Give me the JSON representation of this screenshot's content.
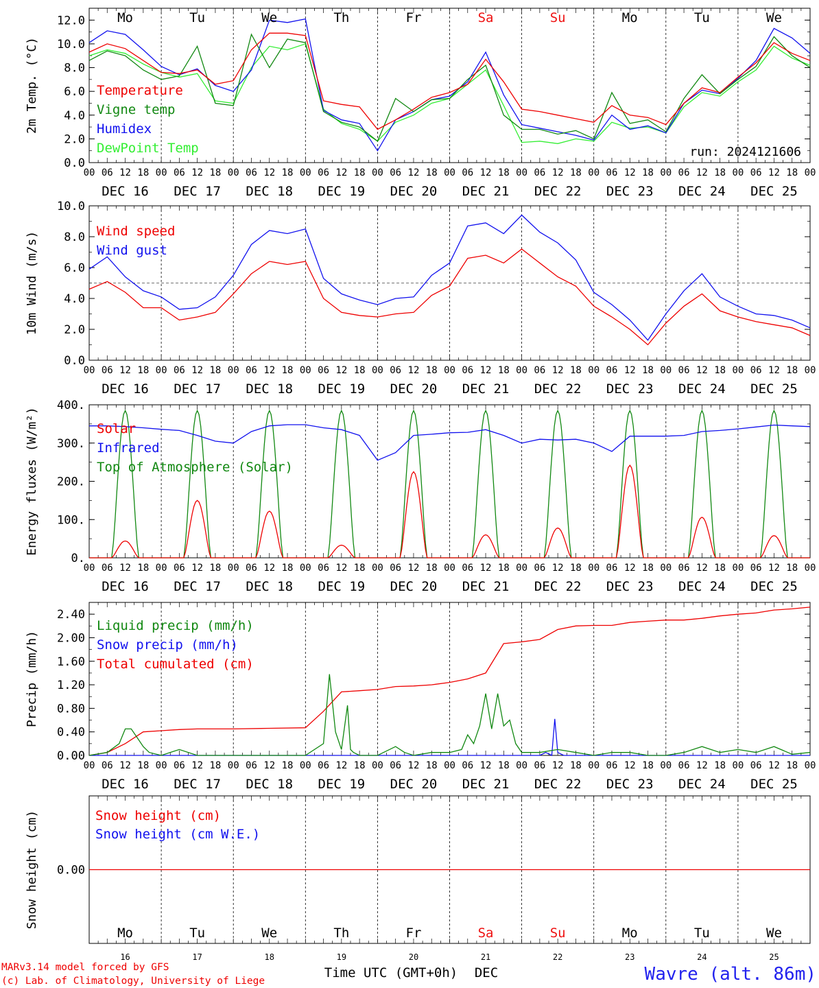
{
  "meta": {
    "run_label": "run: 2024121606",
    "credit_line1": "MARv3.14 model forced by GFS",
    "credit_line2": "(c) Lab. of Climatology, University of Liege",
    "location": "Wavre (alt. 86m)",
    "xaxis_title": "Time UTC (GMT+0h)",
    "xaxis_month": "DEC"
  },
  "time_axis": {
    "hour_ticks": [
      "00",
      "06",
      "12",
      "18"
    ],
    "end_tick": "00",
    "days": [
      {
        "weekday": "Mo",
        "date": "DEC 16",
        "daynum": "16",
        "weekend": false
      },
      {
        "weekday": "Tu",
        "date": "DEC 17",
        "daynum": "17",
        "weekend": false
      },
      {
        "weekday": "We",
        "date": "DEC 18",
        "daynum": "18",
        "weekend": false
      },
      {
        "weekday": "Th",
        "date": "DEC 19",
        "daynum": "19",
        "weekend": false
      },
      {
        "weekday": "Fr",
        "date": "DEC 20",
        "daynum": "20",
        "weekend": false
      },
      {
        "weekday": "Sa",
        "date": "DEC 21",
        "daynum": "21",
        "weekend": true
      },
      {
        "weekday": "Su",
        "date": "DEC 22",
        "daynum": "22",
        "weekend": true
      },
      {
        "weekday": "Mo",
        "date": "DEC 23",
        "daynum": "23",
        "weekend": false
      },
      {
        "weekday": "Tu",
        "date": "DEC 24",
        "daynum": "24",
        "weekend": false
      },
      {
        "weekday": "We",
        "date": "DEC 25",
        "daynum": "25",
        "weekend": false
      }
    ]
  },
  "colors": {
    "red": "#ee0000",
    "green": "#118811",
    "blue": "#1111ee",
    "lightgreen": "#33ee33",
    "weekend": "#ee1111",
    "location": "#2222ee"
  },
  "chart_data": [
    {
      "type": "line",
      "ylabel": "2m Temp. (°C)",
      "ylim": [
        0,
        13
      ],
      "yticks": [
        "0.0",
        "2.0",
        "4.0",
        "6.0",
        "8.0",
        "10.0",
        "12.0"
      ],
      "yticks_values": [
        0,
        2,
        4,
        6,
        8,
        10,
        12
      ],
      "x_unit": "hours since DEC 16 00 UTC",
      "series": [
        {
          "name": "Temperature",
          "color": "#ee0000",
          "x": [
            0,
            6,
            12,
            18,
            24,
            30,
            36,
            42,
            48,
            54,
            60,
            66,
            72,
            78,
            84,
            90,
            96,
            102,
            108,
            114,
            120,
            126,
            132,
            138,
            144,
            150,
            156,
            162,
            168,
            174,
            180,
            186,
            192,
            198,
            204,
            210,
            216,
            222,
            228,
            234,
            240
          ],
          "y": [
            9.3,
            10.0,
            9.6,
            8.6,
            7.6,
            7.5,
            7.8,
            6.6,
            6.9,
            9.5,
            10.9,
            10.9,
            10.7,
            5.2,
            4.9,
            4.7,
            2.8,
            3.6,
            4.5,
            5.5,
            5.9,
            6.6,
            8.7,
            6.8,
            4.5,
            4.3,
            4.0,
            3.7,
            3.4,
            4.8,
            4.0,
            3.8,
            3.2,
            5.0,
            6.3,
            5.9,
            7.2,
            8.4,
            10.1,
            9.2,
            8.6
          ]
        },
        {
          "name": "Vigne temp",
          "color": "#118811",
          "x": [
            0,
            6,
            12,
            18,
            24,
            30,
            36,
            42,
            48,
            54,
            60,
            66,
            72,
            78,
            84,
            90,
            96,
            102,
            108,
            114,
            120,
            126,
            132,
            138,
            144,
            150,
            156,
            162,
            168,
            174,
            180,
            186,
            192,
            198,
            204,
            210,
            216,
            222,
            228,
            234,
            240
          ],
          "y": [
            8.6,
            9.4,
            9.0,
            7.8,
            7.0,
            7.3,
            9.8,
            5.0,
            4.8,
            10.8,
            8.0,
            10.4,
            10.1,
            4.3,
            3.4,
            3.0,
            1.8,
            5.4,
            4.3,
            5.3,
            5.4,
            7.0,
            8.2,
            4.0,
            2.8,
            2.8,
            2.4,
            2.7,
            2.0,
            5.9,
            3.3,
            3.6,
            2.6,
            5.4,
            7.4,
            5.8,
            7.0,
            8.1,
            10.6,
            9.0,
            8.0
          ]
        },
        {
          "name": "Humidex",
          "color": "#1111ee",
          "x": [
            0,
            6,
            12,
            18,
            24,
            30,
            36,
            42,
            48,
            54,
            60,
            66,
            72,
            78,
            84,
            90,
            96,
            102,
            108,
            114,
            120,
            126,
            132,
            138,
            144,
            150,
            156,
            162,
            168,
            174,
            180,
            186,
            192,
            198,
            204,
            210,
            216,
            222,
            228,
            234,
            240
          ],
          "y": [
            10.1,
            11.1,
            10.8,
            9.5,
            8.1,
            7.4,
            7.9,
            6.5,
            6.0,
            7.8,
            12.0,
            11.8,
            12.1,
            4.4,
            3.6,
            3.3,
            1.0,
            3.6,
            4.3,
            5.3,
            5.6,
            6.8,
            9.3,
            5.7,
            3.2,
            2.9,
            2.6,
            2.3,
            1.9,
            4.0,
            2.8,
            3.1,
            2.5,
            5.0,
            6.1,
            5.8,
            7.1,
            8.6,
            11.3,
            10.5,
            9.2
          ]
        },
        {
          "name": "DewPoint Temp",
          "color": "#33ee33",
          "x": [
            0,
            6,
            12,
            18,
            24,
            30,
            36,
            42,
            48,
            54,
            60,
            66,
            72,
            78,
            84,
            90,
            96,
            102,
            108,
            114,
            120,
            126,
            132,
            138,
            144,
            150,
            156,
            162,
            168,
            174,
            180,
            186,
            192,
            198,
            204,
            210,
            216,
            222,
            228,
            234,
            240
          ],
          "y": [
            9.0,
            9.5,
            9.2,
            8.3,
            7.6,
            7.2,
            7.5,
            5.2,
            5.0,
            8.0,
            9.8,
            9.5,
            10.0,
            4.5,
            3.3,
            2.8,
            1.8,
            3.4,
            4.0,
            5.0,
            5.4,
            6.6,
            7.8,
            4.8,
            1.7,
            1.8,
            1.6,
            2.0,
            1.8,
            3.4,
            2.9,
            3.0,
            2.5,
            4.7,
            5.9,
            5.6,
            6.8,
            7.8,
            9.8,
            8.8,
            8.2
          ]
        }
      ]
    },
    {
      "type": "line",
      "ylabel": "10m Wind (m/s)",
      "ylim": [
        0,
        10
      ],
      "yticks": [
        "0.0",
        "2.0",
        "4.0",
        "6.0",
        "8.0",
        "10.0"
      ],
      "yticks_values": [
        0,
        2,
        4,
        6,
        8,
        10
      ],
      "reference_line": 5,
      "x_unit": "hours since DEC 16 00 UTC",
      "series": [
        {
          "name": "Wind speed",
          "color": "#ee0000",
          "x": [
            0,
            6,
            12,
            18,
            24,
            30,
            36,
            42,
            48,
            54,
            60,
            66,
            72,
            78,
            84,
            90,
            96,
            102,
            108,
            114,
            120,
            126,
            132,
            138,
            144,
            150,
            156,
            162,
            168,
            174,
            180,
            186,
            192,
            198,
            204,
            210,
            216,
            222,
            228,
            234,
            240
          ],
          "y": [
            4.6,
            5.1,
            4.4,
            3.4,
            3.4,
            2.6,
            2.8,
            3.1,
            4.3,
            5.6,
            6.4,
            6.2,
            6.4,
            4.0,
            3.1,
            2.9,
            2.8,
            3.0,
            3.1,
            4.2,
            4.8,
            6.6,
            6.8,
            6.3,
            7.2,
            6.3,
            5.4,
            4.8,
            3.5,
            2.8,
            2.0,
            1.0,
            2.4,
            3.5,
            4.3,
            3.2,
            2.8,
            2.5,
            2.3,
            2.1,
            1.6
          ]
        },
        {
          "name": "Wind gust",
          "color": "#1111ee",
          "x": [
            0,
            6,
            12,
            18,
            24,
            30,
            36,
            42,
            48,
            54,
            60,
            66,
            72,
            78,
            84,
            90,
            96,
            102,
            108,
            114,
            120,
            126,
            132,
            138,
            144,
            150,
            156,
            162,
            168,
            174,
            180,
            186,
            192,
            198,
            204,
            210,
            216,
            222,
            228,
            234,
            240
          ],
          "y": [
            5.9,
            6.7,
            5.4,
            4.5,
            4.1,
            3.3,
            3.4,
            4.1,
            5.5,
            7.5,
            8.4,
            8.2,
            8.5,
            5.3,
            4.3,
            3.9,
            3.6,
            4.0,
            4.1,
            5.5,
            6.3,
            8.7,
            8.9,
            8.2,
            9.4,
            8.3,
            7.6,
            6.5,
            4.4,
            3.6,
            2.6,
            1.3,
            3.0,
            4.5,
            5.6,
            4.1,
            3.5,
            3.0,
            2.9,
            2.6,
            2.1
          ]
        }
      ]
    },
    {
      "type": "line",
      "ylabel": "Energy fluxes (W/m²)",
      "ylim": [
        0,
        400
      ],
      "yticks": [
        "0.",
        "100.",
        "200.",
        "300.",
        "400."
      ],
      "yticks_values": [
        0,
        100,
        200,
        300,
        400
      ],
      "x_unit": "hours since DEC 16 00 UTC",
      "series": [
        {
          "name": "Solar",
          "color": "#ee0000",
          "daily_peak_hour": 12,
          "daily_half_width_hours": 4.5,
          "peaks": [
            44,
            150,
            122,
            33,
            225,
            60,
            78,
            242,
            106,
            58
          ]
        },
        {
          "name": "Infrared",
          "color": "#1111ee",
          "x": [
            0,
            6,
            12,
            18,
            24,
            30,
            36,
            42,
            48,
            54,
            60,
            66,
            72,
            78,
            84,
            90,
            96,
            102,
            108,
            114,
            120,
            126,
            132,
            138,
            144,
            150,
            156,
            162,
            168,
            174,
            180,
            186,
            192,
            198,
            204,
            210,
            216,
            222,
            228,
            234,
            240
          ],
          "y": [
            345,
            345,
            343,
            340,
            336,
            333,
            320,
            305,
            300,
            330,
            345,
            348,
            348,
            340,
            335,
            320,
            255,
            275,
            320,
            323,
            327,
            328,
            335,
            320,
            300,
            310,
            308,
            310,
            300,
            278,
            318,
            318,
            318,
            320,
            330,
            333,
            337,
            342,
            347,
            345,
            343
          ]
        },
        {
          "name": "Top of Atmosphere (Solar)",
          "color": "#118811",
          "daily_peak_hour": 12,
          "daily_half_width_hours": 4.5,
          "peaks": [
            385,
            385,
            385,
            385,
            385,
            385,
            385,
            385,
            385,
            385
          ]
        }
      ]
    },
    {
      "type": "line",
      "ylabel": "Precip (mm/h)",
      "ylim": [
        0,
        2.6
      ],
      "yticks": [
        "0.00",
        "0.40",
        "0.80",
        "1.20",
        "1.60",
        "2.00",
        "2.40"
      ],
      "yticks_values": [
        0,
        0.4,
        0.8,
        1.2,
        1.6,
        2.0,
        2.4
      ],
      "x_unit": "hours since DEC 16 00 UTC",
      "series": [
        {
          "name": "Liquid precip (mm/h)",
          "color": "#118811",
          "x": [
            0,
            6,
            10,
            12,
            14,
            16,
            18,
            20,
            24,
            30,
            36,
            48,
            60,
            72,
            78,
            80,
            82,
            84,
            86,
            87,
            88,
            90,
            96,
            102,
            105,
            108,
            114,
            120,
            124,
            126,
            128,
            130,
            132,
            134,
            136,
            138,
            140,
            142,
            144,
            150,
            156,
            162,
            168,
            174,
            180,
            186,
            192,
            198,
            204,
            210,
            216,
            222,
            228,
            234,
            240
          ],
          "y": [
            0.0,
            0.05,
            0.2,
            0.45,
            0.45,
            0.3,
            0.15,
            0.05,
            0.0,
            0.1,
            0.0,
            0.0,
            0.0,
            0.0,
            0.2,
            1.38,
            0.4,
            0.1,
            0.85,
            0.1,
            0.05,
            0.0,
            0.0,
            0.15,
            0.05,
            0.0,
            0.05,
            0.05,
            0.1,
            0.35,
            0.2,
            0.5,
            1.05,
            0.45,
            1.05,
            0.5,
            0.6,
            0.2,
            0.05,
            0.05,
            0.1,
            0.05,
            0.0,
            0.05,
            0.05,
            0.0,
            0.0,
            0.05,
            0.15,
            0.05,
            0.1,
            0.05,
            0.15,
            0.02,
            0.05
          ]
        },
        {
          "name": "Snow precip (mm/h)",
          "color": "#1111ee",
          "x": [
            0,
            84,
            96,
            102,
            104,
            106,
            150,
            152,
            154,
            155,
            156,
            158,
            168,
            240
          ],
          "y": [
            0.0,
            0.0,
            0.0,
            0.0,
            0.0,
            0.0,
            0.0,
            0.05,
            0.0,
            0.62,
            0.05,
            0.0,
            0.0,
            0.0
          ]
        },
        {
          "name": "Total cumulated (cm)",
          "color": "#ee0000",
          "x": [
            0,
            6,
            12,
            18,
            24,
            30,
            36,
            48,
            60,
            72,
            78,
            84,
            90,
            96,
            102,
            108,
            114,
            120,
            126,
            132,
            138,
            144,
            150,
            156,
            162,
            168,
            174,
            180,
            186,
            192,
            198,
            204,
            210,
            216,
            222,
            228,
            234,
            240
          ],
          "y": [
            0.0,
            0.05,
            0.2,
            0.4,
            0.42,
            0.44,
            0.45,
            0.45,
            0.46,
            0.47,
            0.75,
            1.08,
            1.1,
            1.12,
            1.17,
            1.18,
            1.2,
            1.24,
            1.3,
            1.4,
            1.9,
            1.93,
            1.97,
            2.14,
            2.2,
            2.21,
            2.21,
            2.26,
            2.28,
            2.3,
            2.3,
            2.33,
            2.37,
            2.4,
            2.42,
            2.47,
            2.49,
            2.52
          ]
        }
      ]
    },
    {
      "type": "line",
      "ylabel": "Snow height (cm)",
      "ylim": [
        -1,
        1
      ],
      "yticks": [
        "0.00"
      ],
      "yticks_values": [
        0
      ],
      "x_unit": "hours since DEC 16 00 UTC",
      "series": [
        {
          "name": "Snow height (cm)",
          "color": "#ee0000",
          "x": [
            0,
            240
          ],
          "y": [
            0,
            0
          ]
        },
        {
          "name": "Snow height (cm W.E.)",
          "color": "#1111ee",
          "x": [],
          "y": []
        }
      ]
    }
  ]
}
